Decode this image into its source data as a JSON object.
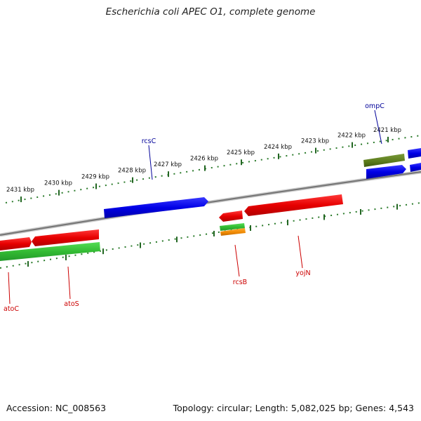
{
  "title": "Escherichia coli APEC O1, complete genome",
  "footer": {
    "accession": "Accession: NC_008563",
    "topology": "Topology: circular; Length: 5,082,025 bp; Genes: 4,543"
  },
  "scale_labels": [
    "2431 kbp",
    "2430 kbp",
    "2429 kbp",
    "2428 kbp",
    "2427 kbp",
    "2426 kbp",
    "2425 kbp",
    "2424 kbp",
    "2423 kbp",
    "2422 kbp",
    "2421 kbp"
  ],
  "gene_labels": {
    "rcsC": "rcsC",
    "ompC": "ompC",
    "atoC": "atoC",
    "atoS": "atoS",
    "rcsB": "rcsB",
    "yojN": "yojN"
  },
  "colors": {
    "forward_gene": "#0000e6",
    "reverse_gene": "#e60000",
    "green_gene": "#33bb33",
    "olive_gene": "#5a7a1a",
    "orange_gene": "#ee8800",
    "backbone": "#777777",
    "ticks": "#226622",
    "forward_label": "#000099",
    "reverse_label": "#cc0000"
  }
}
